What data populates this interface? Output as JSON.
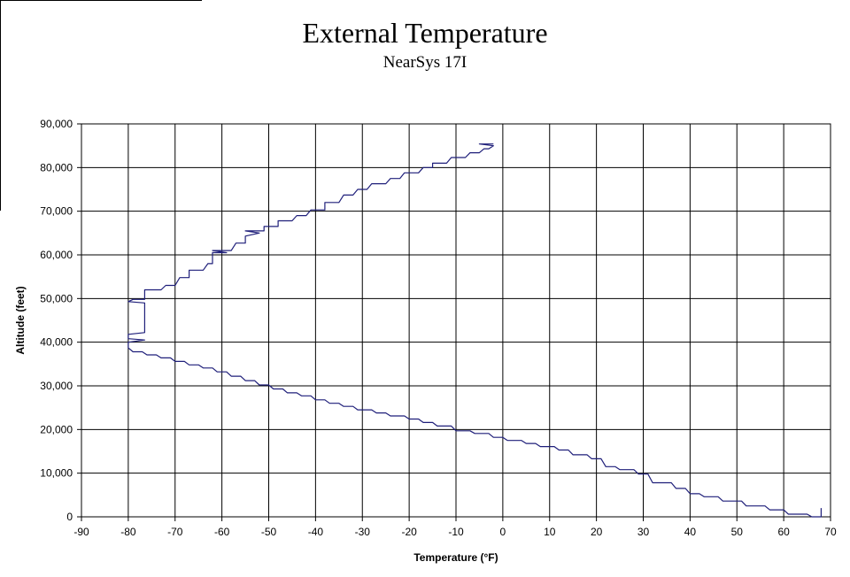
{
  "chart_data": {
    "type": "line",
    "title": "External Temperature",
    "subtitle": "NearSys  17I",
    "xlabel": "Temperature (°F)",
    "ylabel": "Altitude (feet)",
    "xlim": [
      -90,
      70
    ],
    "ylim": [
      0,
      90000
    ],
    "x_ticks": [
      -90,
      -80,
      -70,
      -60,
      -50,
      -40,
      -30,
      -20,
      -10,
      0,
      10,
      20,
      30,
      40,
      50,
      60,
      70
    ],
    "y_ticks": [
      0,
      10000,
      20000,
      30000,
      40000,
      50000,
      60000,
      70000,
      80000,
      90000
    ],
    "y_tick_labels": [
      "0",
      "10,000",
      "20,000",
      "30,000",
      "40,000",
      "50,000",
      "60,000",
      "70,000",
      "80,000",
      "90,000"
    ],
    "grid": true,
    "legend": "none",
    "line_color": "#1f1f7a",
    "series": [
      {
        "points": [
          [
            68,
            2000
          ],
          [
            68,
            0
          ],
          [
            66,
            0
          ],
          [
            65,
            600
          ],
          [
            61,
            600
          ],
          [
            60,
            1600
          ],
          [
            57,
            1600
          ],
          [
            56,
            2500
          ],
          [
            52,
            2500
          ],
          [
            51,
            3600
          ],
          [
            47,
            3600
          ],
          [
            46,
            4600
          ],
          [
            43,
            4600
          ],
          [
            42,
            5300
          ],
          [
            40,
            5300
          ],
          [
            39,
            6500
          ],
          [
            37,
            6500
          ],
          [
            36,
            7800
          ],
          [
            32,
            7800
          ],
          [
            31,
            9800
          ],
          [
            29,
            9800
          ],
          [
            28,
            10800
          ],
          [
            25,
            10800
          ],
          [
            24,
            11500
          ],
          [
            22,
            11500
          ],
          [
            21,
            13300
          ],
          [
            19,
            13300
          ],
          [
            18,
            14200
          ],
          [
            15,
            14200
          ],
          [
            14,
            15300
          ],
          [
            12,
            15300
          ],
          [
            11,
            16100
          ],
          [
            8,
            16100
          ],
          [
            7,
            16800
          ],
          [
            5,
            16800
          ],
          [
            4,
            17500
          ],
          [
            1,
            17500
          ],
          [
            0,
            18200
          ],
          [
            -2,
            18200
          ],
          [
            -3,
            19100
          ],
          [
            -6,
            19100
          ],
          [
            -7,
            19700
          ],
          [
            -10,
            19700
          ],
          [
            -11,
            20800
          ],
          [
            -14,
            20800
          ],
          [
            -15,
            21600
          ],
          [
            -17,
            21600
          ],
          [
            -18,
            22400
          ],
          [
            -20,
            22400
          ],
          [
            -21,
            23100
          ],
          [
            -24,
            23100
          ],
          [
            -25,
            23800
          ],
          [
            -27,
            23800
          ],
          [
            -28,
            24500
          ],
          [
            -31,
            24500
          ],
          [
            -32,
            25300
          ],
          [
            -34,
            25300
          ],
          [
            -35,
            26000
          ],
          [
            -37,
            26000
          ],
          [
            -38,
            26800
          ],
          [
            -40,
            26800
          ],
          [
            -41,
            27700
          ],
          [
            -43,
            27700
          ],
          [
            -44,
            28400
          ],
          [
            -46,
            28400
          ],
          [
            -47,
            29300
          ],
          [
            -49,
            29300
          ],
          [
            -50,
            30200
          ],
          [
            -52,
            30200
          ],
          [
            -53,
            31200
          ],
          [
            -55,
            31200
          ],
          [
            -56,
            32200
          ],
          [
            -58,
            32200
          ],
          [
            -59,
            33200
          ],
          [
            -61,
            33200
          ],
          [
            -62,
            34100
          ],
          [
            -64,
            34100
          ],
          [
            -65,
            34800
          ],
          [
            -67,
            34800
          ],
          [
            -68,
            35600
          ],
          [
            -70,
            35600
          ],
          [
            -71,
            36400
          ],
          [
            -73,
            36400
          ],
          [
            -74,
            37100
          ],
          [
            -76,
            37100
          ],
          [
            -77,
            37800
          ],
          [
            -79,
            37800
          ],
          [
            -80,
            38700
          ],
          [
            -80,
            40000
          ],
          [
            -76.5,
            40500
          ],
          [
            -80,
            40800
          ],
          [
            -80,
            41800
          ],
          [
            -76.5,
            42200
          ],
          [
            -76.5,
            49000
          ],
          [
            -80,
            49300
          ],
          [
            -79,
            49800
          ],
          [
            -76.5,
            49800
          ],
          [
            -76.5,
            52000
          ],
          [
            -73,
            52000
          ],
          [
            -72,
            53000
          ],
          [
            -70,
            53000
          ],
          [
            -69,
            54800
          ],
          [
            -67,
            54800
          ],
          [
            -67,
            56500
          ],
          [
            -64,
            56500
          ],
          [
            -63,
            58000
          ],
          [
            -62,
            58000
          ],
          [
            -62,
            60500
          ],
          [
            -59,
            60500
          ],
          [
            -62,
            61000
          ],
          [
            -58,
            61000
          ],
          [
            -57,
            62700
          ],
          [
            -55,
            62700
          ],
          [
            -55,
            64300
          ],
          [
            -52,
            65000
          ],
          [
            -55,
            65500
          ],
          [
            -51,
            65500
          ],
          [
            -51,
            66500
          ],
          [
            -48,
            66500
          ],
          [
            -48,
            67800
          ],
          [
            -45,
            67800
          ],
          [
            -44,
            69000
          ],
          [
            -42,
            69000
          ],
          [
            -41,
            70300
          ],
          [
            -38,
            70300
          ],
          [
            -38,
            72000
          ],
          [
            -35,
            72000
          ],
          [
            -34,
            73700
          ],
          [
            -32,
            73700
          ],
          [
            -31,
            75000
          ],
          [
            -29,
            75000
          ],
          [
            -28,
            76300
          ],
          [
            -25,
            76300
          ],
          [
            -24,
            77500
          ],
          [
            -22,
            77500
          ],
          [
            -21,
            78800
          ],
          [
            -18,
            78800
          ],
          [
            -17,
            80000
          ],
          [
            -15,
            80000
          ],
          [
            -15,
            81000
          ],
          [
            -12,
            81000
          ],
          [
            -11,
            82300
          ],
          [
            -8,
            82300
          ],
          [
            -7,
            83400
          ],
          [
            -5,
            83400
          ],
          [
            -4,
            84300
          ],
          [
            -3,
            84300
          ],
          [
            -2,
            85000
          ],
          [
            -5,
            85400
          ],
          [
            -2,
            85400
          ]
        ]
      }
    ]
  }
}
